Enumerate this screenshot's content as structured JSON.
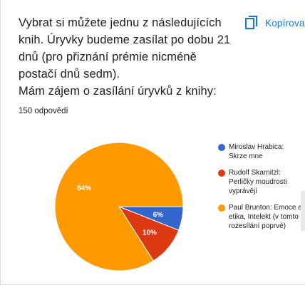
{
  "question": {
    "lines": [
      "Vybrat si můžete jednu z následujících",
      "knih. Úryvky budeme zasílat po dobu 21",
      "dnů (pro přiznání prémie nicméně",
      "postačí dnů sedm).",
      "Mám zájem o zasílání úryvků z knihy:"
    ]
  },
  "response_count": "150 odpovědí",
  "copy_button": {
    "label": "Kopírova",
    "icon": "copy-icon"
  },
  "chart_data": {
    "type": "pie",
    "slices": [
      {
        "label": "Miroslav Hrabica:\nSkrze mne",
        "value": 6,
        "data_label": "6%",
        "color": "#3366cc"
      },
      {
        "label": "Rudolf Skarnitzl:\nPerličky moudrosti\nvyprávějí",
        "value": 10,
        "data_label": "10%",
        "color": "#dc3912"
      },
      {
        "label": "Paul Brunton: Emoce a\netika, Intelekt (v tomto\nrozesílání poprvé)",
        "value": 84,
        "data_label": "84%",
        "color": "#ff9900"
      }
    ],
    "legend_position": "right",
    "start_angle": "3-o'clock, clockwise"
  }
}
